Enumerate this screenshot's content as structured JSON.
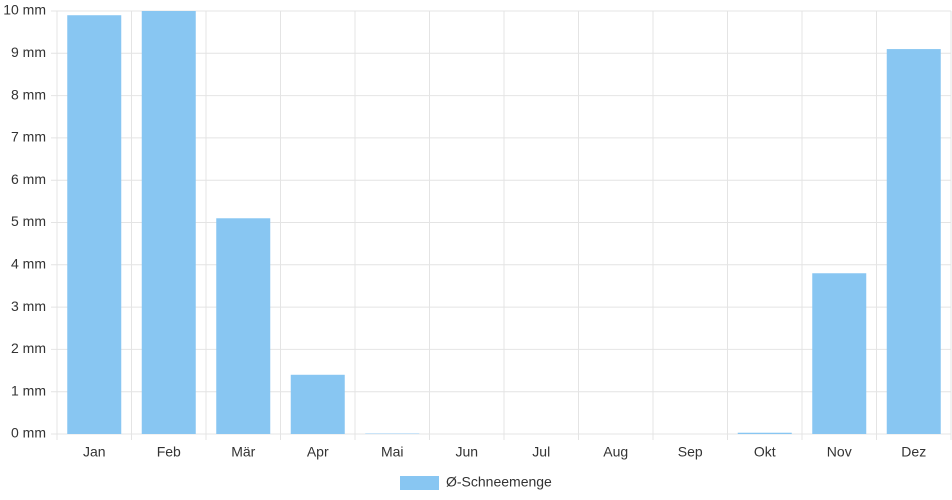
{
  "chart_data": {
    "type": "bar",
    "categories": [
      "Jan",
      "Feb",
      "Mär",
      "Apr",
      "Mai",
      "Jun",
      "Jul",
      "Aug",
      "Sep",
      "Okt",
      "Nov",
      "Dez"
    ],
    "series": [
      {
        "name": "Ø-Schneemenge",
        "color": "#88c6f2",
        "values": [
          9.9,
          10.0,
          5.1,
          1.4,
          0.01,
          0,
          0,
          0,
          0,
          0.03,
          3.8,
          9.1
        ]
      }
    ],
    "ylim": [
      0,
      10
    ],
    "yticks": [
      {
        "value": 0,
        "label": "0 mm"
      },
      {
        "value": 1,
        "label": "1 mm"
      },
      {
        "value": 2,
        "label": "2 mm"
      },
      {
        "value": 3,
        "label": "3 mm"
      },
      {
        "value": 4,
        "label": "4 mm"
      },
      {
        "value": 5,
        "label": "5 mm"
      },
      {
        "value": 6,
        "label": "6 mm"
      },
      {
        "value": 7,
        "label": "7 mm"
      },
      {
        "value": 8,
        "label": "8 mm"
      },
      {
        "value": 9,
        "label": "9 mm"
      },
      {
        "value": 10,
        "label": "10 mm"
      }
    ],
    "grid": true
  }
}
